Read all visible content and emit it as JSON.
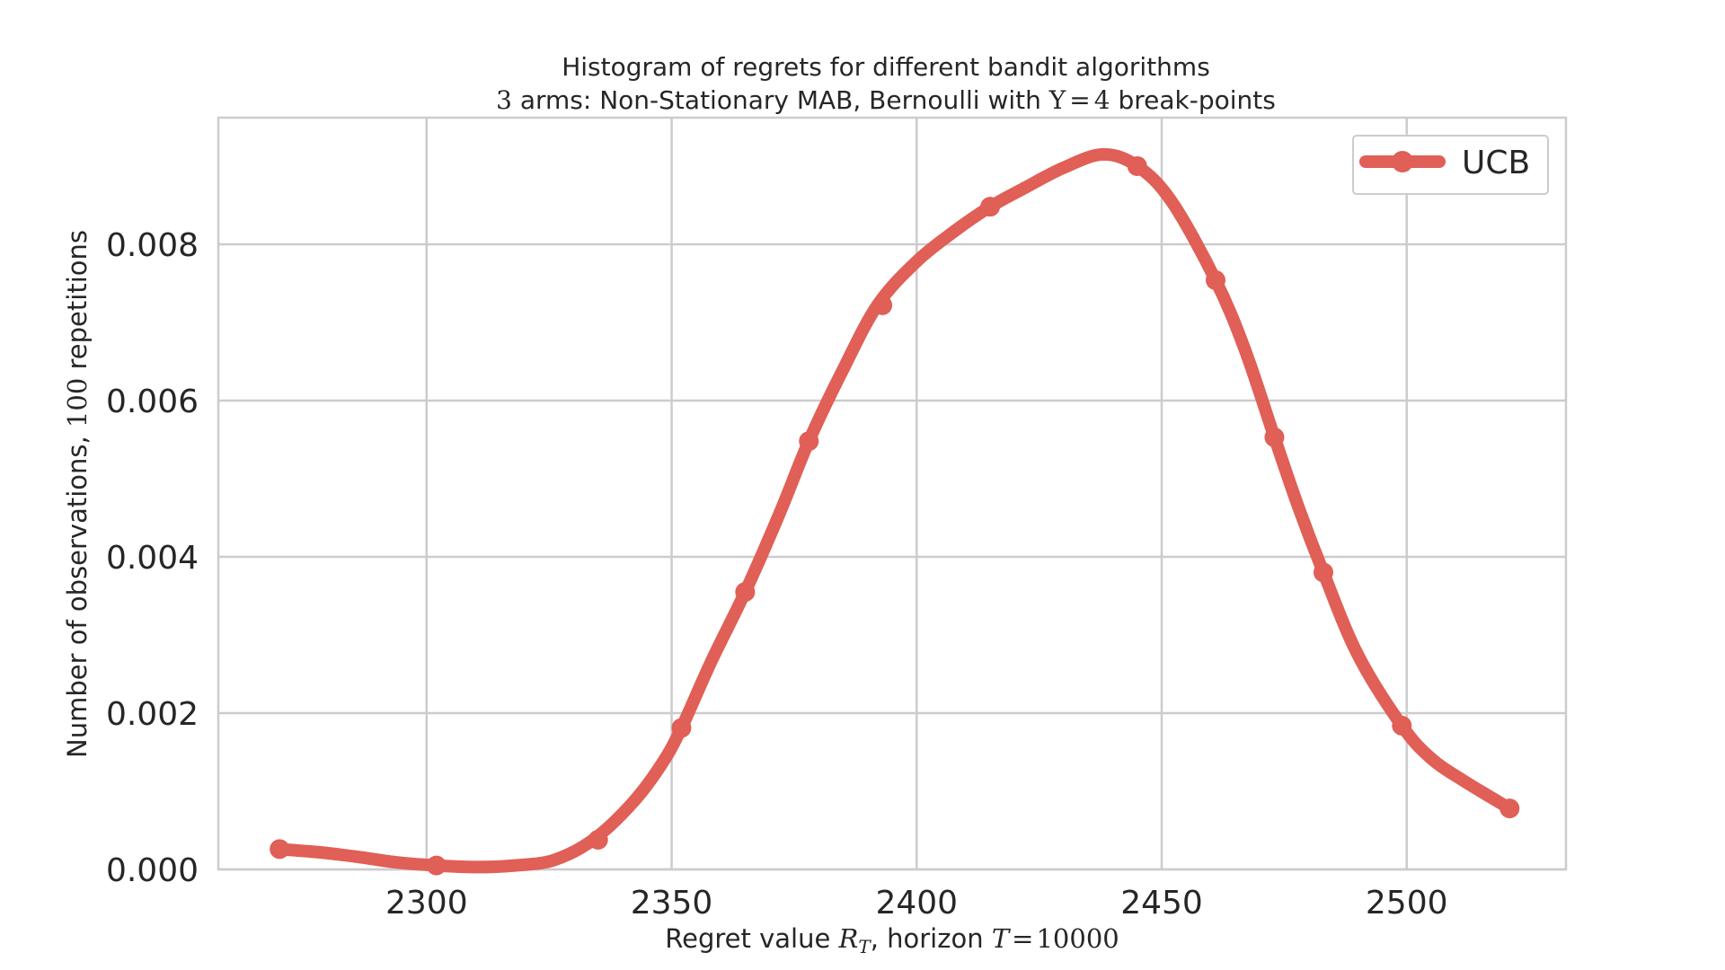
{
  "chart_data": {
    "type": "line",
    "title": "Histogram of regrets for different bandit algorithms",
    "subtitle": {
      "n_arms": "3",
      "text_after_arms": " arms: Non-Stationary MAB, Bernoulli with ",
      "upsilon": "Υ",
      "eq": "=",
      "breakpoints": "4",
      "text_end": " break-points"
    },
    "xlabel": {
      "prefix": "Regret value ",
      "var": "R",
      "sub": "T",
      "middle": ", horizon ",
      "horizon_var": "T",
      "eq": "=",
      "horizon_value": "10000"
    },
    "ylabel": {
      "prefix": "Number of observations, ",
      "reps": "100",
      "suffix": " repetitions"
    },
    "xlim": [
      2257.5,
      2532.5
    ],
    "ylim": [
      0,
      0.00962
    ],
    "xticks": [
      2300,
      2350,
      2400,
      2450,
      2500
    ],
    "xtick_labels": [
      "2300",
      "2350",
      "2400",
      "2450",
      "2500"
    ],
    "yticks": [
      0,
      0.002,
      0.004,
      0.006,
      0.008
    ],
    "ytick_labels": [
      "0.000",
      "0.002",
      "0.004",
      "0.006",
      "0.008"
    ],
    "grid": true,
    "legend_position": "top-right",
    "series": [
      {
        "name": "UCB",
        "color": "#e05f56",
        "curve": [
          [
            2270,
            0.00026
          ],
          [
            2278,
            0.00022
          ],
          [
            2286,
            0.00016
          ],
          [
            2294,
            9e-05
          ],
          [
            2302,
            5e-05
          ],
          [
            2310,
            3e-05
          ],
          [
            2318,
            5e-05
          ],
          [
            2326,
            0.00012
          ],
          [
            2334,
            0.00038
          ],
          [
            2342,
            0.00085
          ],
          [
            2348,
            0.00135
          ],
          [
            2352,
            0.00181
          ],
          [
            2358,
            0.00265
          ],
          [
            2365,
            0.00355
          ],
          [
            2372,
            0.00455
          ],
          [
            2378,
            0.00548
          ],
          [
            2385,
            0.0064
          ],
          [
            2392,
            0.00722
          ],
          [
            2400,
            0.00778
          ],
          [
            2408,
            0.00818
          ],
          [
            2415,
            0.00848
          ],
          [
            2422,
            0.00872
          ],
          [
            2430,
            0.00898
          ],
          [
            2438,
            0.00915
          ],
          [
            2445,
            0.009
          ],
          [
            2452,
            0.00855
          ],
          [
            2461,
            0.00754
          ],
          [
            2467,
            0.00665
          ],
          [
            2473,
            0.00553
          ],
          [
            2478,
            0.00462
          ],
          [
            2483,
            0.0038
          ],
          [
            2490,
            0.00275
          ],
          [
            2499,
            0.00184
          ],
          [
            2505,
            0.00142
          ],
          [
            2512,
            0.00112
          ],
          [
            2521,
            0.00078
          ]
        ],
        "markers": [
          [
            2270,
            0.00026
          ],
          [
            2302,
            5e-05
          ],
          [
            2335,
            0.00038
          ],
          [
            2352,
            0.00181
          ],
          [
            2365,
            0.00355
          ],
          [
            2378,
            0.00548
          ],
          [
            2393,
            0.00722
          ],
          [
            2415,
            0.00848
          ],
          [
            2445,
            0.009
          ],
          [
            2461,
            0.00754
          ],
          [
            2473,
            0.00553
          ],
          [
            2483,
            0.0038
          ],
          [
            2499,
            0.00184
          ],
          [
            2521,
            0.00078
          ]
        ]
      }
    ]
  }
}
